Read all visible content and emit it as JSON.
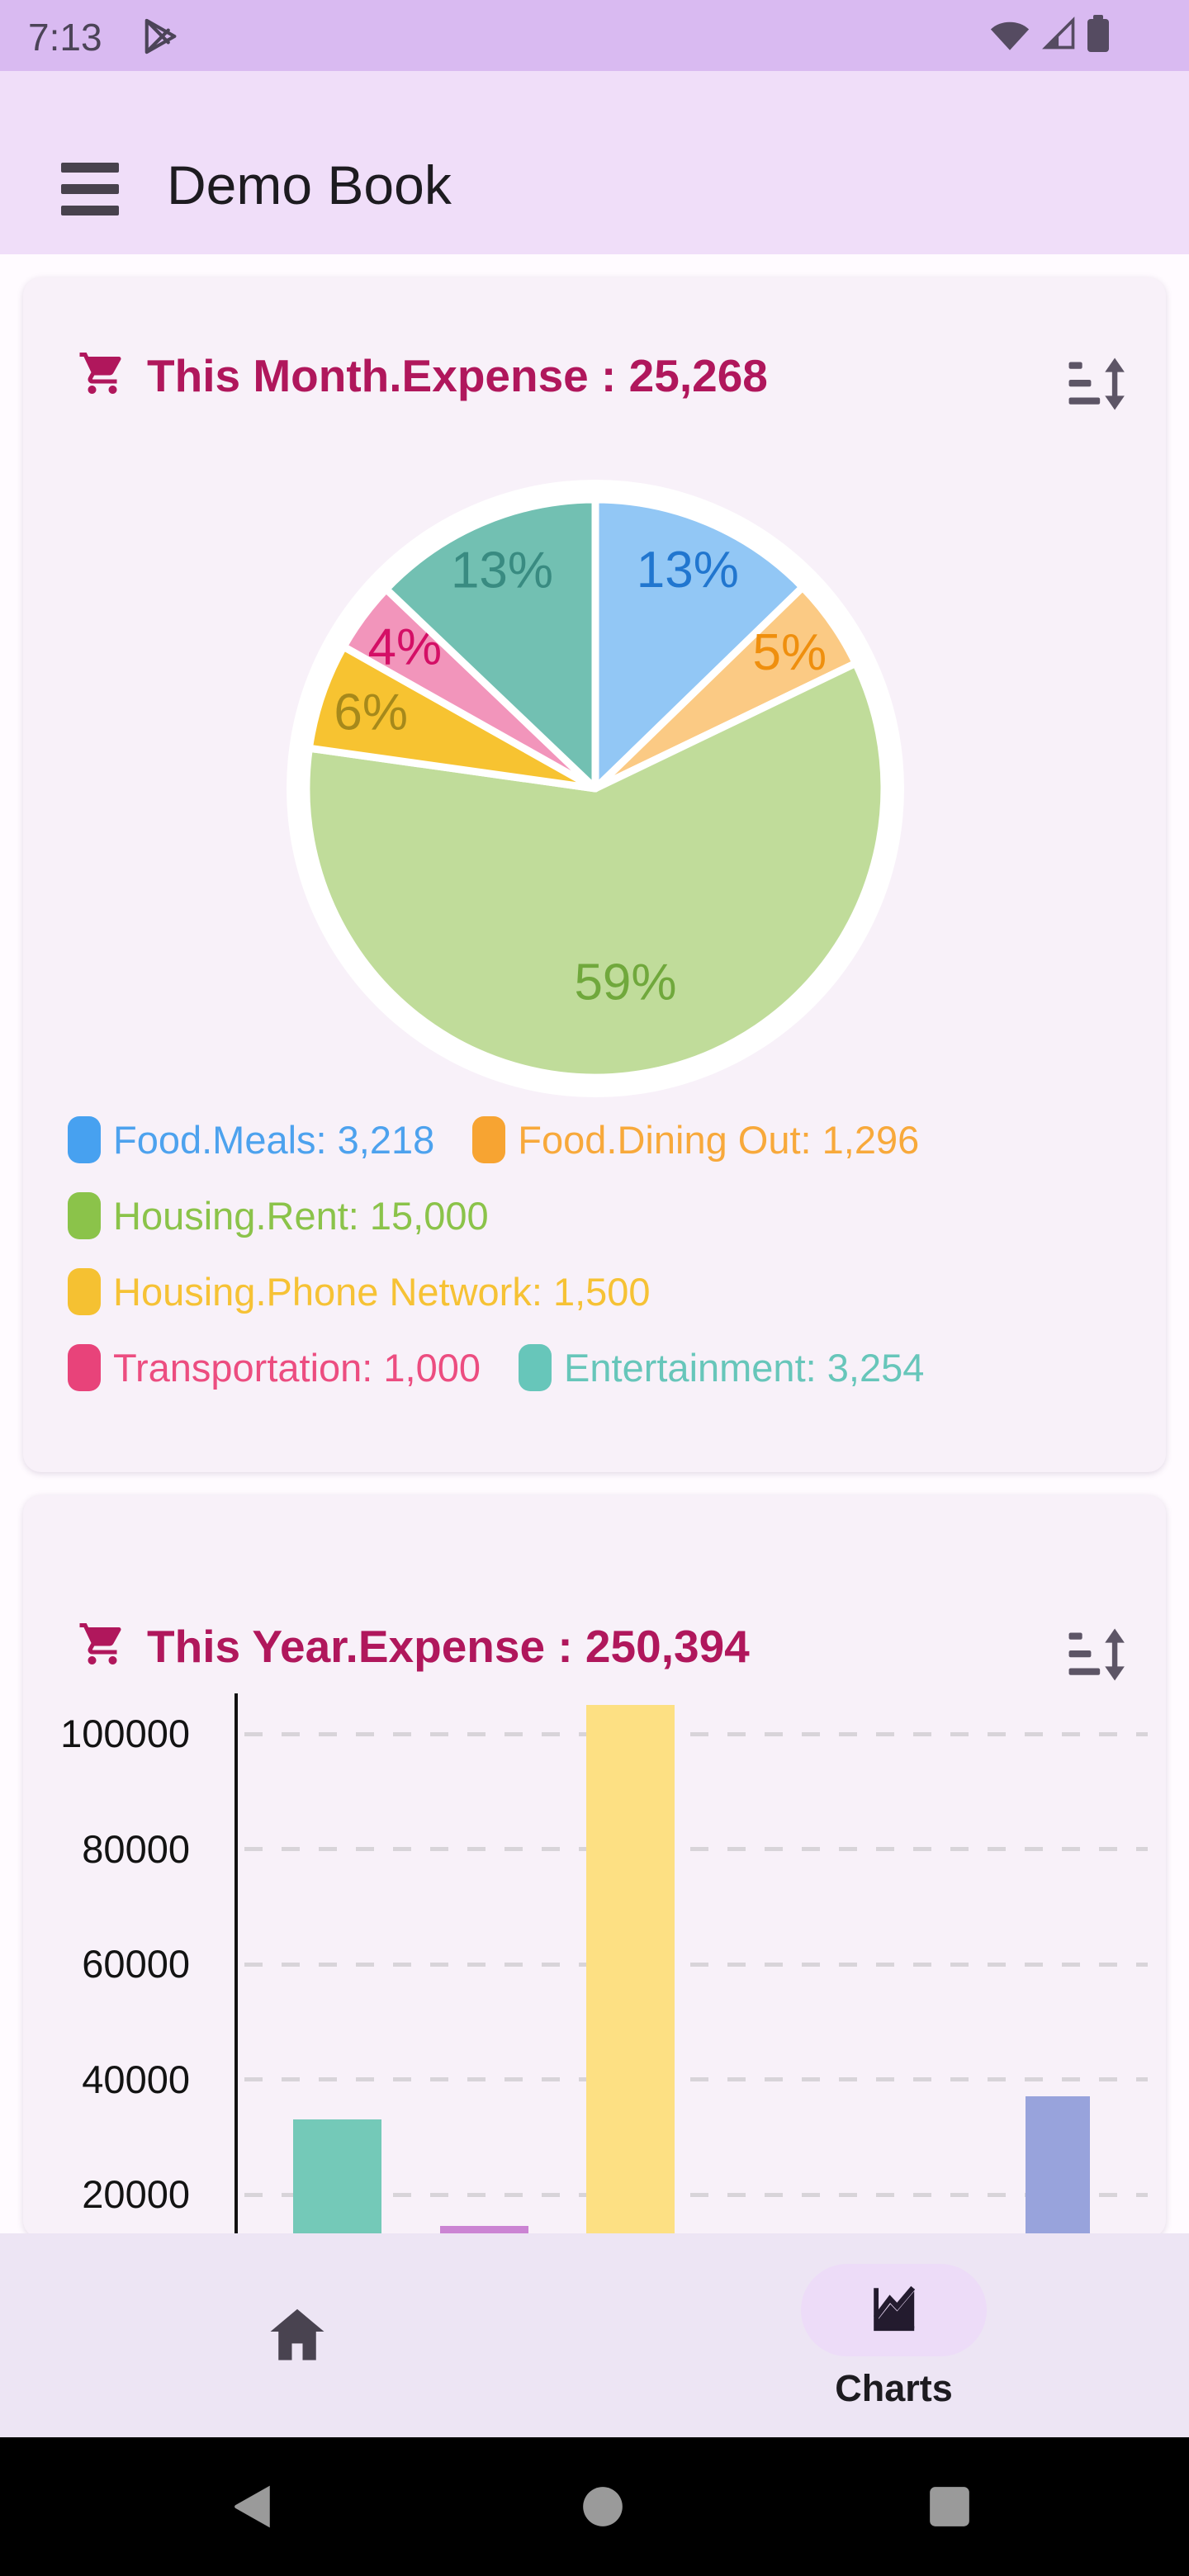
{
  "status_bar": {
    "time": "7:13",
    "icons": [
      "play-store-icon",
      "wifi-icon",
      "cellular-icon",
      "battery-icon"
    ]
  },
  "app_bar": {
    "title": "Demo Book"
  },
  "colors": {
    "status_bar_bg": "#d9baf1",
    "app_bar_bg": "#f0def9",
    "card_bg": "#f8f1f9",
    "accent_crimson": "#b0175c",
    "icon_gray": "#5d5566",
    "nav_bg": "#ede5f4",
    "nav_pill": "#eddcf8"
  },
  "chart_data": [
    {
      "type": "pie",
      "title": "This Month.Expense : 25,268",
      "total": 25268,
      "legend_position": "bottom",
      "slices": [
        {
          "label": "Food.Meals",
          "value": 3218,
          "pct_label": "13%",
          "slice_color": "#92c7f5",
          "pct_text_color": "#2176cf",
          "legend_text": "Food.Meals: 3,218",
          "legend_text_color": "#4da2ee",
          "legend_swatch_color": "#47a1f0"
        },
        {
          "label": "Food.Dining Out",
          "value": 1296,
          "pct_label": "5%",
          "slice_color": "#fbca84",
          "pct_text_color": "#ef8f0e",
          "legend_text": "Food.Dining Out: 1,296",
          "legend_text_color": "#f8a93b",
          "legend_swatch_color": "#f7a432"
        },
        {
          "label": "Housing.Rent",
          "value": 15000,
          "pct_label": "59%",
          "slice_color": "#c0dc9a",
          "pct_text_color": "#70a83c",
          "legend_text": "Housing.Rent: 15,000",
          "legend_text_color": "#8bc34a",
          "legend_swatch_color": "#8bc34a"
        },
        {
          "label": "Housing.Phone Network",
          "value": 1500,
          "pct_label": "6%",
          "slice_color": "#f7c331",
          "pct_text_color": "#a6891b",
          "legend_text": "Housing.Phone Network: 1,500",
          "legend_text_color": "#f6c235",
          "legend_swatch_color": "#f5c132"
        },
        {
          "label": "Transportation",
          "value": 1000,
          "pct_label": "4%",
          "slice_color": "#f295bb",
          "pct_text_color": "#d40f66",
          "legend_text": "Transportation: 1,000",
          "legend_text_color": "#ec4d80",
          "legend_swatch_color": "#e8437a"
        },
        {
          "label": "Entertainment",
          "value": 3254,
          "pct_label": "13%",
          "slice_color": "#72c0b2",
          "pct_text_color": "#398b81",
          "legend_text": "Entertainment: 3,254",
          "legend_text_color": "#67c6ba",
          "legend_swatch_color": "#67c6ba"
        }
      ],
      "legend_rows": [
        [
          0,
          1
        ],
        [
          2
        ],
        [
          3
        ],
        [
          4,
          5
        ]
      ]
    },
    {
      "type": "bar",
      "title": "This Year.Expense : 250,394",
      "total": 250394,
      "y_ticks": [
        20000,
        40000,
        60000,
        80000,
        100000
      ],
      "ylim": [
        0,
        107000
      ],
      "grid": "dashed-horizontal",
      "bars": [
        {
          "slot": 1,
          "value": 33000,
          "color": "#74c9b8",
          "cx": 380,
          "width": 107
        },
        {
          "slot": 2,
          "value": 14500,
          "color": "#cb84d3",
          "cx": 558,
          "width": 107
        },
        {
          "slot": 3,
          "value": 105000,
          "color": "#fde083",
          "cx": 735,
          "width": 107
        },
        {
          "slot": 6,
          "value": 37000,
          "color": "#98a3dc",
          "cx": 1253,
          "width": 78
        }
      ]
    }
  ],
  "bottom_nav": {
    "items": [
      {
        "name": "home",
        "label": "",
        "icon": "home-icon",
        "active": false
      },
      {
        "name": "charts",
        "label": "Charts",
        "icon": "area-chart-icon",
        "active": true
      }
    ]
  },
  "android_nav": {
    "buttons": [
      "back",
      "home",
      "recents"
    ]
  }
}
